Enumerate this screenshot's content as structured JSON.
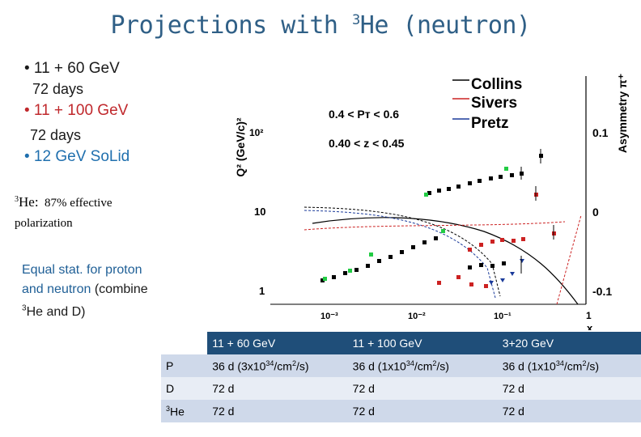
{
  "title": {
    "pre": "Projections with ",
    "sup": "3",
    "post": "He (neutron)"
  },
  "bullets": [
    {
      "text": "• 11 + 60 GeV",
      "sub": "72 days"
    },
    {
      "text": "• 11 + 100 GeV",
      "sub": "72 days"
    },
    {
      "text": "• 12 GeV SoLid"
    }
  ],
  "he_note": {
    "sup": "3",
    "label": "He:",
    "pct": "87% effective",
    "line2": "polarization"
  },
  "equal_note": {
    "line1": "Equal stat. for proton",
    "line2a": "and neutron",
    "line2b": " (combine",
    "line3sup": "3",
    "line3": "He and D)"
  },
  "plot": {
    "y_left_label": "Q² (GeV/c)²",
    "y_right_label": "Asymmetry π⁺",
    "x_label": "x",
    "y_left_ticks": [
      "10²",
      "10",
      "1"
    ],
    "y_right_ticks": [
      "0.1",
      "0",
      "-0.1"
    ],
    "x_ticks": [
      "10⁻³",
      "10⁻²",
      "10⁻¹",
      "1"
    ],
    "kin1": "0.4 < Pᴛ < 0.6",
    "kin2": "0.40 < z < 0.45",
    "legend": [
      {
        "name": "Collins",
        "color": "#000000"
      },
      {
        "name": "Sivers",
        "color": "#cc2222"
      },
      {
        "name": "Pretz",
        "color": "#1a3a9a"
      }
    ]
  },
  "table": {
    "header": [
      "",
      "11 + 60 GeV",
      "11 + 100 GeV",
      "3+20 GeV"
    ],
    "rows": [
      {
        "label": "P",
        "c1a": "36 d (3x10",
        "c1b": "34",
        "c1c": "/cm",
        "c1d": "2",
        "c1e": "/s)",
        "c2a": "36 d (1x10",
        "c2b": "34",
        "c2c": "/cm",
        "c2d": "2",
        "c2e": "/s)",
        "c3a": "36 d (1x10",
        "c3b": "34",
        "c3c": "/cm",
        "c3d": "2",
        "c3e": "/s)"
      },
      {
        "label": "D",
        "c1": "72 d",
        "c2": "72 d",
        "c3": "72 d"
      },
      {
        "label_sup": "3",
        "label": "He",
        "c1": "72 d",
        "c2": "72 d",
        "c3": "72 d"
      }
    ]
  }
}
